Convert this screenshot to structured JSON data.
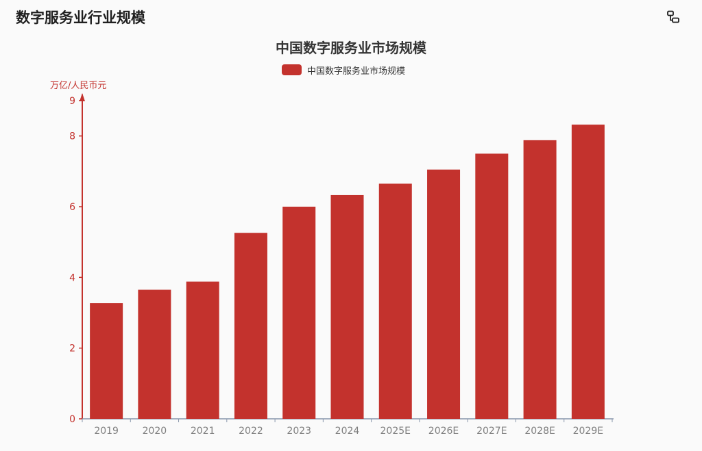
{
  "page": {
    "title": "数字服务业行业规模"
  },
  "toolbar": {
    "icon": "toggle-view-icon"
  },
  "colors": {
    "bar": "#c3322d",
    "axis": "#c3322d",
    "axis_label": "#c3322d",
    "x_axis": "#8896ab",
    "x_tick_label": "#7f7f7f",
    "title": "#333333"
  },
  "chart_data": {
    "type": "bar",
    "title": "中国数字服务业市场规模",
    "ylabel": "万亿/人民币元",
    "xlabel": "",
    "legend": {
      "position": "top-center",
      "entries": [
        "中国数字服务业市场规模"
      ]
    },
    "categories": [
      "2019",
      "2020",
      "2021",
      "2022",
      "2023",
      "2024",
      "2025E",
      "2026E",
      "2027E",
      "2028E",
      "2029E"
    ],
    "series": [
      {
        "name": "中国数字服务业市场规模",
        "values": [
          3.27,
          3.65,
          3.88,
          5.26,
          6.0,
          6.33,
          6.65,
          7.05,
          7.5,
          7.88,
          8.32
        ]
      }
    ],
    "ylim": [
      0,
      9
    ],
    "y_ticks": [
      0,
      2,
      4,
      6,
      8,
      9
    ],
    "grid": false
  }
}
